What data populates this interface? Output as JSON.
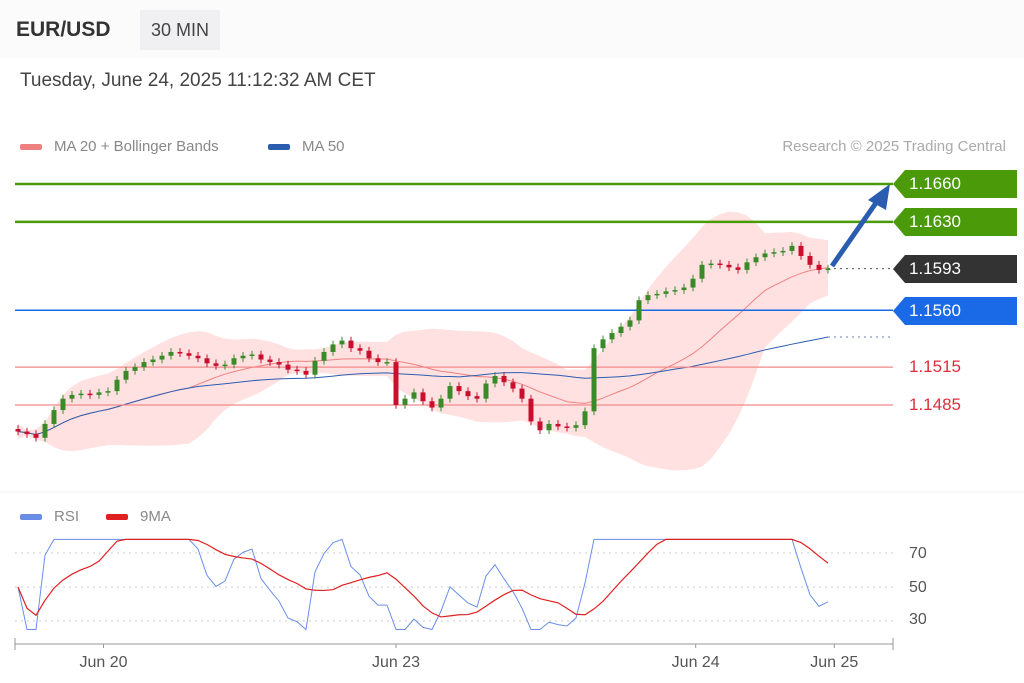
{
  "header": {
    "symbol": "EUR/USD",
    "timeframe": "30 MIN",
    "datetime": "Tuesday, June 24, 2025 11:12:32 AM CET"
  },
  "legend": {
    "ma20": "MA 20 + Bollinger Bands",
    "ma50": "MA 50",
    "rsi": "RSI",
    "rsi_ma": "9MA",
    "copyright": "Research © 2025 Trading Central"
  },
  "colors": {
    "ma20": "#f08080",
    "ma50": "#2a5db0",
    "up": "#3a8a2a",
    "down": "#c8102e",
    "resistance": "#4a9a0a",
    "pivot": "#1a6ae8",
    "support": "#e02d3c",
    "last": "#333333",
    "rsi": "#6a8ee8",
    "rsi_ma": "#e02020"
  },
  "chart_data": [
    {
      "type": "candlestick",
      "title": "EUR/USD",
      "closes": [
        1.1464,
        1.1462,
        1.1459,
        1.147,
        1.1481,
        1.149,
        1.1493,
        1.1494,
        1.1493,
        1.1495,
        1.1496,
        1.1505,
        1.1512,
        1.1515,
        1.1519,
        1.1521,
        1.1524,
        1.1527,
        1.1526,
        1.1524,
        1.1522,
        1.1518,
        1.1516,
        1.1517,
        1.1522,
        1.1524,
        1.1525,
        1.1521,
        1.1519,
        1.1517,
        1.1513,
        1.1512,
        1.1509,
        1.152,
        1.1527,
        1.1533,
        1.1536,
        1.153,
        1.1528,
        1.1522,
        1.1519,
        1.1519,
        1.1485,
        1.149,
        1.1495,
        1.1488,
        1.1483,
        1.149,
        1.15,
        1.1496,
        1.1492,
        1.149,
        1.1502,
        1.1508,
        1.1503,
        1.1498,
        1.149,
        1.1472,
        1.1465,
        1.147,
        1.1468,
        1.1467,
        1.1469,
        1.148,
        1.153,
        1.1537,
        1.1542,
        1.1547,
        1.1552,
        1.1568,
        1.1572,
        1.1573,
        1.1575,
        1.1576,
        1.1578,
        1.1585,
        1.1596,
        1.1597,
        1.1596,
        1.1594,
        1.1592,
        1.1598,
        1.1602,
        1.1605,
        1.1606,
        1.1607,
        1.1611,
        1.1603,
        1.1596,
        1.1592,
        1.1593
      ],
      "x_ticks": [
        {
          "label": "Jun 20",
          "index": 9.5
        },
        {
          "label": "Jun 23",
          "index": 42
        },
        {
          "label": "Jun 24",
          "index": 75.3
        },
        {
          "label": "Jun 25",
          "index": 90.7
        }
      ],
      "ylim": [
        1.143,
        1.168
      ],
      "levels": {
        "resistance": [
          "1.1660",
          "1.1630"
        ],
        "last": "1.1593",
        "pivot": "1.1560",
        "support": [
          "1.1515",
          "1.1485"
        ]
      },
      "forecast": "up"
    },
    {
      "type": "line",
      "series": [
        {
          "name": "RSI"
        },
        {
          "name": "9MA"
        }
      ],
      "ylim": [
        20,
        80
      ],
      "y_ticks": [
        "70",
        "50",
        "30"
      ]
    }
  ]
}
